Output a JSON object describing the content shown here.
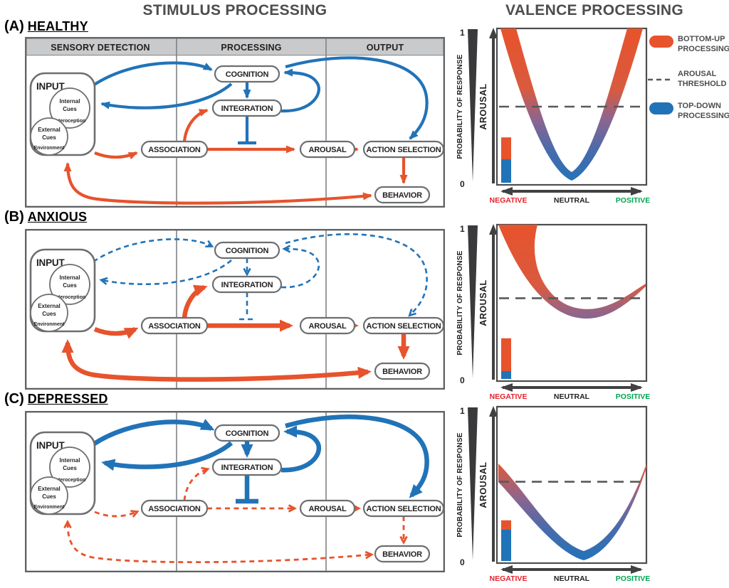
{
  "titles": {
    "stimulus": "STIMULUS PROCESSING",
    "valence": "VALENCE PROCESSING"
  },
  "panels": [
    {
      "tag": "(A)",
      "name": "HEALTHY",
      "top_down_style": "solid-medium",
      "bottom_up_style": "solid-medium"
    },
    {
      "tag": "(B)",
      "name": "ANXIOUS",
      "top_down_style": "dashed-thin",
      "bottom_up_style": "solid-thick"
    },
    {
      "tag": "(C)",
      "name": "DEPRESSED",
      "top_down_style": "solid-thick",
      "bottom_up_style": "dashed-thin"
    }
  ],
  "flowchart": {
    "column_headers": [
      "SENSORY DETECTION",
      "PROCESSING",
      "OUTPUT"
    ],
    "nodes": {
      "input": "INPUT",
      "internal_1": "Internal",
      "internal_2": "Cues",
      "internal_sub": "Interoception",
      "external_1": "External",
      "external_2": "Cues",
      "external_sub": "Environment",
      "cognition": "COGNITION",
      "integration": "INTEGRATION",
      "association": "ASSOCIATION",
      "arousal": "AROUSAL",
      "action_selection": "ACTION SELECTION",
      "behavior": "BEHAVIOR"
    },
    "edges": {
      "top_down_blue": [
        "INPUT → COGNITION",
        "COGNITION → INPUT",
        "COGNITION → INTEGRATION",
        "INTEGRATION → COGNITION",
        "COGNITION → ACTION SELECTION",
        "INTEGRATION ⊣ inhibits ASSOCIATION→AROUSAL"
      ],
      "bottom_up_orange": [
        "INPUT → ASSOCIATION",
        "ASSOCIATION → INTEGRATION",
        "ASSOCIATION → AROUSAL",
        "AROUSAL → ACTION SELECTION",
        "ACTION SELECTION → BEHAVIOR",
        "BEHAVIOR ↔ INPUT"
      ]
    }
  },
  "chart": {
    "ylabel": "PROBABILITY OF RESPONSE",
    "y_top": "1",
    "y_bottom": "0",
    "arousal_label": "AROUSAL",
    "x_labels": {
      "negative": "NEGATIVE",
      "neutral": "NEUTRAL",
      "positive": "POSITIVE"
    }
  },
  "legend": {
    "bottom_up": [
      "BOTTOM-UP",
      "PROCESSING"
    ],
    "arousal_threshold": [
      "AROUSAL",
      "THRESHOLD"
    ],
    "top_down": [
      "TOP-DOWN",
      "PROCESSING"
    ]
  },
  "colors": {
    "orange": "#e7532c",
    "blue": "#2173b8",
    "dark": "#414042",
    "red": "#e8222a",
    "green": "#00a550",
    "header_gray": "#c9cacb",
    "border_gray": "#6d6e71"
  },
  "chart_data": [
    {
      "type": "area",
      "panel": "HEALTHY",
      "xlabel_range": [
        "NEGATIVE",
        "NEUTRAL",
        "POSITIVE"
      ],
      "ylabel": "PROBABILITY OF RESPONSE",
      "ylim": [
        0,
        1
      ],
      "threshold": 0.5,
      "curve": [
        [
          -1,
          1.0
        ],
        [
          -0.75,
          0.78
        ],
        [
          -0.5,
          0.48
        ],
        [
          -0.25,
          0.18
        ],
        [
          0,
          0.03
        ],
        [
          0.25,
          0.18
        ],
        [
          0.5,
          0.48
        ],
        [
          0.75,
          0.78
        ],
        [
          1,
          1.0
        ]
      ],
      "bars": {
        "bottom_up": 0.14,
        "top_down": 0.15
      }
    },
    {
      "type": "area",
      "panel": "ANXIOUS",
      "xlabel_range": [
        "NEGATIVE",
        "NEUTRAL",
        "POSITIVE"
      ],
      "ylabel": "PROBABILITY OF RESPONSE",
      "ylim": [
        0,
        1
      ],
      "threshold": 0.53,
      "curve": [
        [
          -1,
          1.0
        ],
        [
          -0.75,
          0.72
        ],
        [
          -0.5,
          0.52
        ],
        [
          -0.25,
          0.43
        ],
        [
          0,
          0.41
        ],
        [
          0.25,
          0.42
        ],
        [
          0.5,
          0.46
        ],
        [
          0.75,
          0.52
        ],
        [
          1,
          0.6
        ]
      ],
      "bars": {
        "bottom_up": 0.21,
        "top_down": 0.05
      }
    },
    {
      "type": "area",
      "panel": "DEPRESSED",
      "xlabel_range": [
        "NEGATIVE",
        "NEUTRAL",
        "POSITIVE"
      ],
      "ylabel": "PROBABILITY OF RESPONSE",
      "ylim": [
        0,
        1
      ],
      "threshold": 0.52,
      "curve": [
        [
          -1,
          0.6
        ],
        [
          -0.75,
          0.4
        ],
        [
          -0.5,
          0.22
        ],
        [
          -0.25,
          0.09
        ],
        [
          0,
          0.04
        ],
        [
          0.25,
          0.06
        ],
        [
          0.5,
          0.16
        ],
        [
          0.75,
          0.35
        ],
        [
          1,
          0.62
        ]
      ],
      "bars": {
        "bottom_up": 0.06,
        "top_down": 0.2
      }
    }
  ]
}
